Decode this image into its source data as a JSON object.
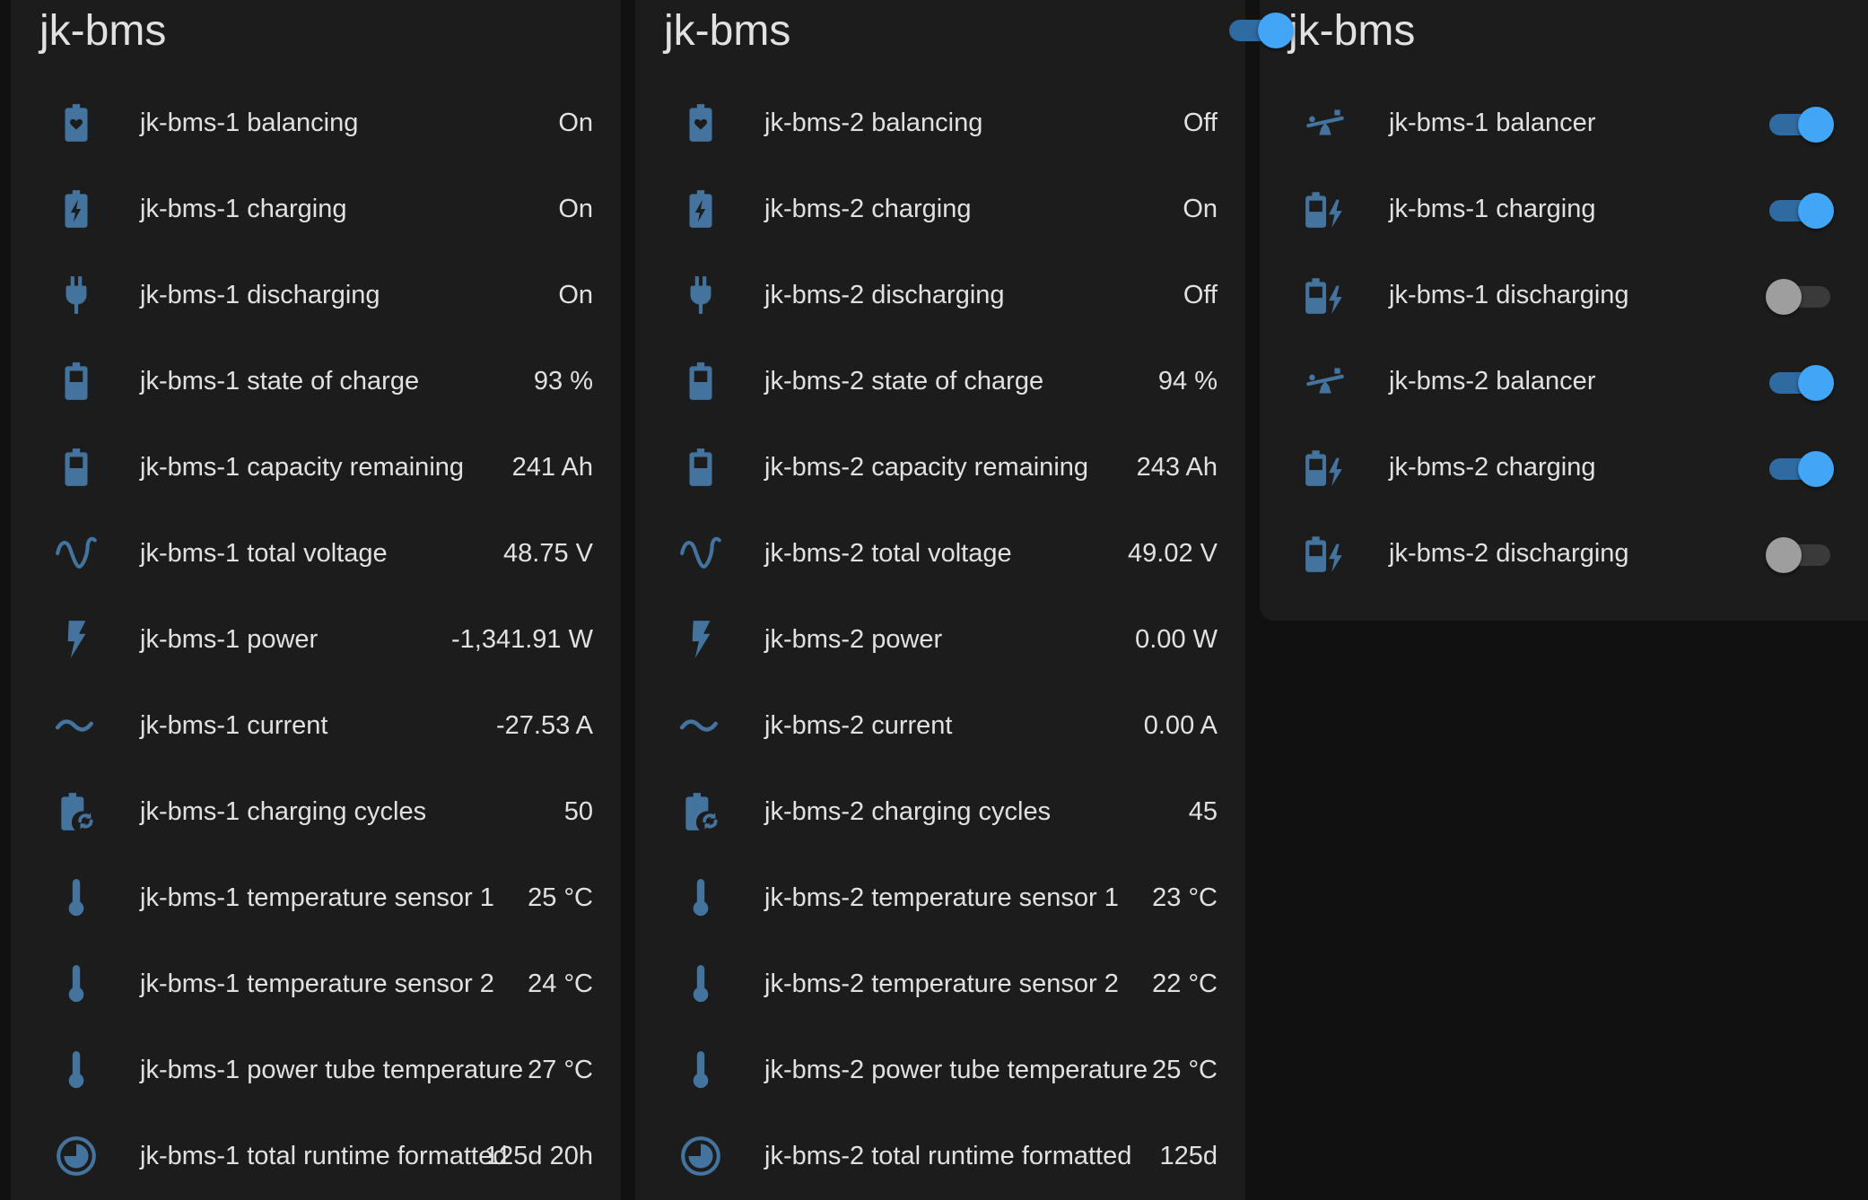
{
  "colors": {
    "background": "#111111",
    "card": "#1c1c1c",
    "icon": "#44739e",
    "text": "#e1e1e1",
    "toggle_on": "#42a5f5",
    "toggle_off": "#9e9e9e"
  },
  "card1": {
    "title": "jk-bms",
    "rows": [
      {
        "icon": "battery-heart-icon",
        "name": "jk-bms-1 balancing",
        "value": "On"
      },
      {
        "icon": "battery-charging-icon",
        "name": "jk-bms-1 charging",
        "value": "On"
      },
      {
        "icon": "power-plug-icon",
        "name": "jk-bms-1 discharging",
        "value": "On"
      },
      {
        "icon": "battery-icon",
        "name": "jk-bms-1 state of charge",
        "value": "93 %"
      },
      {
        "icon": "battery-icon",
        "name": "jk-bms-1 capacity remaining",
        "value": "241 Ah"
      },
      {
        "icon": "sine-wave-icon",
        "name": "jk-bms-1 total voltage",
        "value": "48.75 V"
      },
      {
        "icon": "lightning-bolt-icon",
        "name": "jk-bms-1 power",
        "value": "-1,341.91 W"
      },
      {
        "icon": "current-ac-icon",
        "name": "jk-bms-1 current",
        "value": "-27.53 A"
      },
      {
        "icon": "battery-sync-icon",
        "name": "jk-bms-1 charging cycles",
        "value": "50"
      },
      {
        "icon": "thermometer-icon",
        "name": "jk-bms-1 temperature sensor 1",
        "value": "25 °C"
      },
      {
        "icon": "thermometer-icon",
        "name": "jk-bms-1 temperature sensor 2",
        "value": "24 °C"
      },
      {
        "icon": "thermometer-icon",
        "name": "jk-bms-1 power tube temperature",
        "value": "27 °C"
      },
      {
        "icon": "clock-icon",
        "name": "jk-bms-1 total runtime formatted",
        "value": "125d 20h"
      }
    ]
  },
  "card2": {
    "title": "jk-bms",
    "rows": [
      {
        "icon": "battery-heart-icon",
        "name": "jk-bms-2 balancing",
        "value": "Off"
      },
      {
        "icon": "battery-charging-icon",
        "name": "jk-bms-2 charging",
        "value": "On"
      },
      {
        "icon": "power-plug-icon",
        "name": "jk-bms-2 discharging",
        "value": "Off"
      },
      {
        "icon": "battery-icon",
        "name": "jk-bms-2 state of charge",
        "value": "94 %"
      },
      {
        "icon": "battery-icon",
        "name": "jk-bms-2 capacity remaining",
        "value": "243 Ah"
      },
      {
        "icon": "sine-wave-icon",
        "name": "jk-bms-2 total voltage",
        "value": "49.02 V"
      },
      {
        "icon": "lightning-bolt-icon",
        "name": "jk-bms-2 power",
        "value": "0.00 W"
      },
      {
        "icon": "current-ac-icon",
        "name": "jk-bms-2 current",
        "value": "0.00 A"
      },
      {
        "icon": "battery-sync-icon",
        "name": "jk-bms-2 charging cycles",
        "value": "45"
      },
      {
        "icon": "thermometer-icon",
        "name": "jk-bms-2 temperature sensor 1",
        "value": "23 °C"
      },
      {
        "icon": "thermometer-icon",
        "name": "jk-bms-2 temperature sensor 2",
        "value": "22 °C"
      },
      {
        "icon": "thermometer-icon",
        "name": "jk-bms-2 power tube temperature",
        "value": "25 °C"
      },
      {
        "icon": "clock-icon",
        "name": "jk-bms-2 total runtime formatted",
        "value": "125d"
      }
    ]
  },
  "card3": {
    "title": "jk-bms",
    "header_toggle_on": true,
    "rows": [
      {
        "icon": "seesaw-icon",
        "name": "jk-bms-1 balancer",
        "on": true
      },
      {
        "icon": "battery-bolt-icon",
        "name": "jk-bms-1 charging",
        "on": true
      },
      {
        "icon": "battery-bolt-icon",
        "name": "jk-bms-1 discharging",
        "on": false
      },
      {
        "icon": "seesaw-icon",
        "name": "jk-bms-2 balancer",
        "on": true
      },
      {
        "icon": "battery-bolt-icon",
        "name": "jk-bms-2 charging",
        "on": true
      },
      {
        "icon": "battery-bolt-icon",
        "name": "jk-bms-2 discharging",
        "on": false
      }
    ]
  }
}
